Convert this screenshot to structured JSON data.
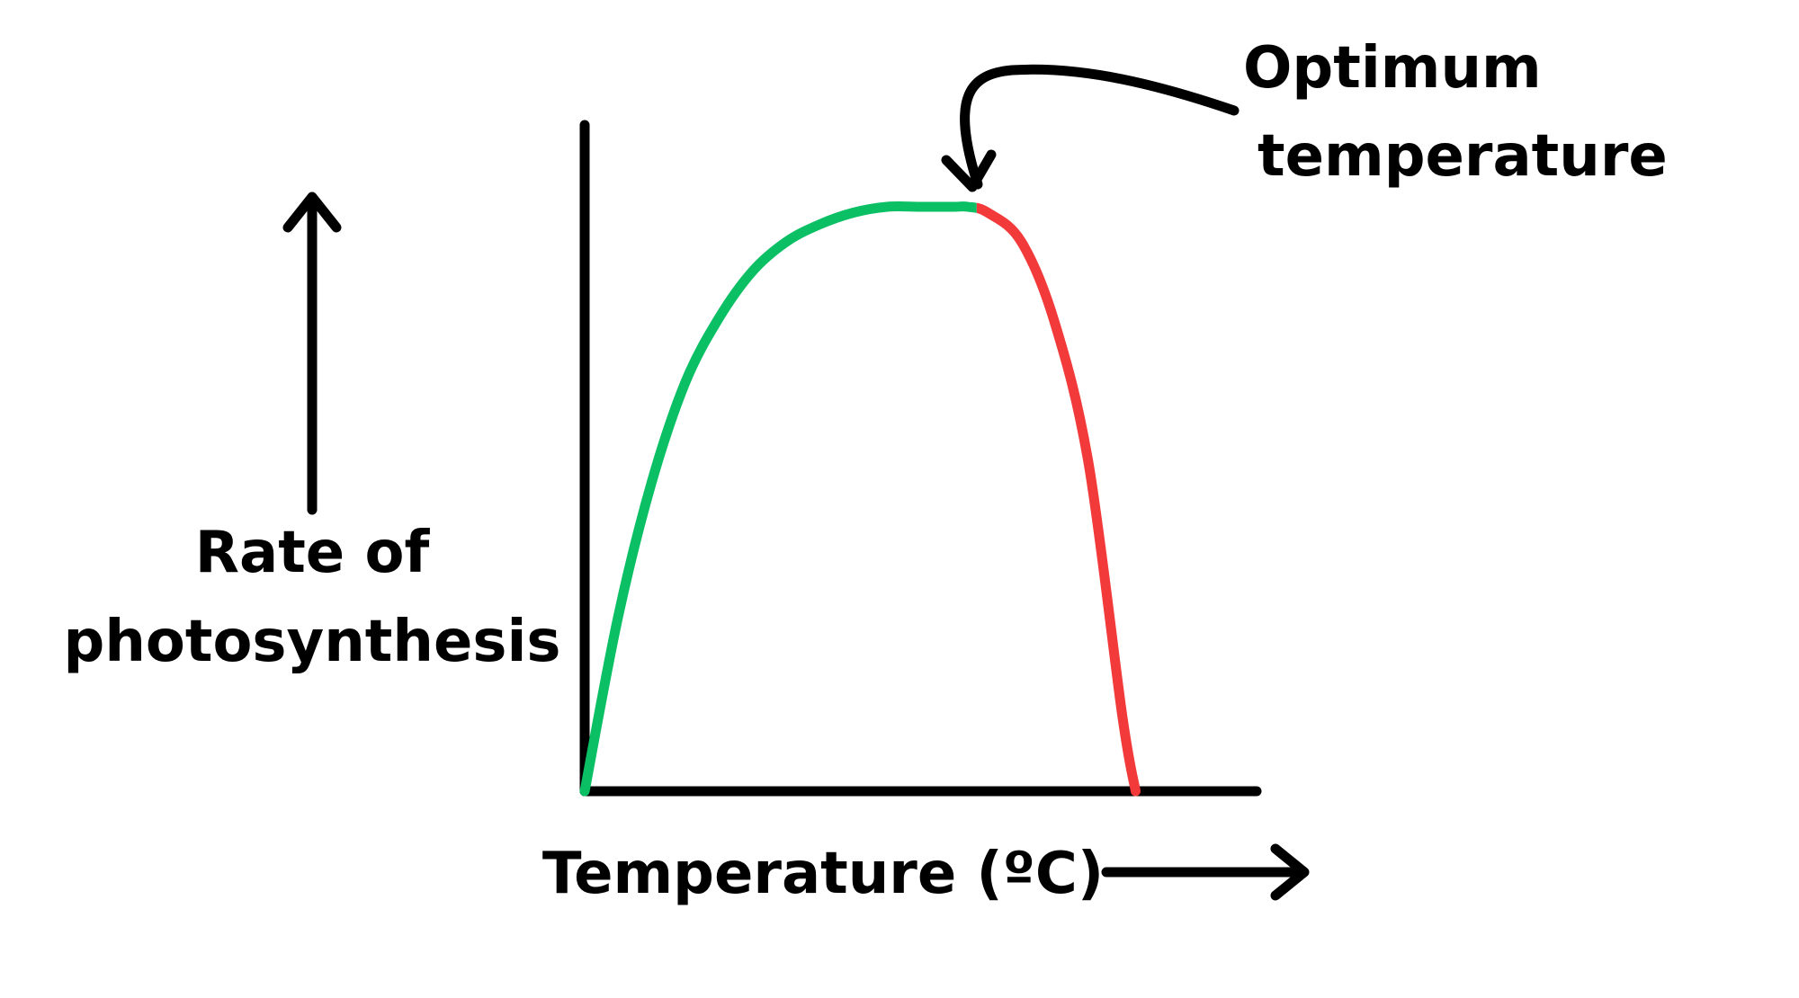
{
  "chart_data": {
    "type": "line",
    "title": "",
    "xlabel": "Temperature (ºC)",
    "ylabel_lines": [
      "Rate of",
      "photosynthesis"
    ],
    "annotation": {
      "lines": [
        "Optimum",
        "temperature"
      ],
      "at_x": 0.57
    },
    "x": [
      0,
      0.05,
      0.1,
      0.15,
      0.2,
      0.25,
      0.3,
      0.35,
      0.4,
      0.45,
      0.5,
      0.55,
      0.57,
      0.6,
      0.65,
      0.7,
      0.75,
      0.8,
      0.82
    ],
    "series": [
      {
        "values": [
          0,
          0.3,
          0.53,
          0.7,
          0.81,
          0.89,
          0.94,
          0.97,
          0.99,
          1.0,
          1.0,
          1.0,
          1.0,
          0.99,
          0.94,
          0.8,
          0.56,
          0.13,
          0
        ],
        "segment_colors": {
          "rising": "#0abf64",
          "falling": "#f23a3a"
        }
      }
    ],
    "grid": false,
    "ticks": false,
    "colors": {
      "axis": "#000000",
      "rising": "#0abf64",
      "falling": "#f23a3a"
    }
  }
}
